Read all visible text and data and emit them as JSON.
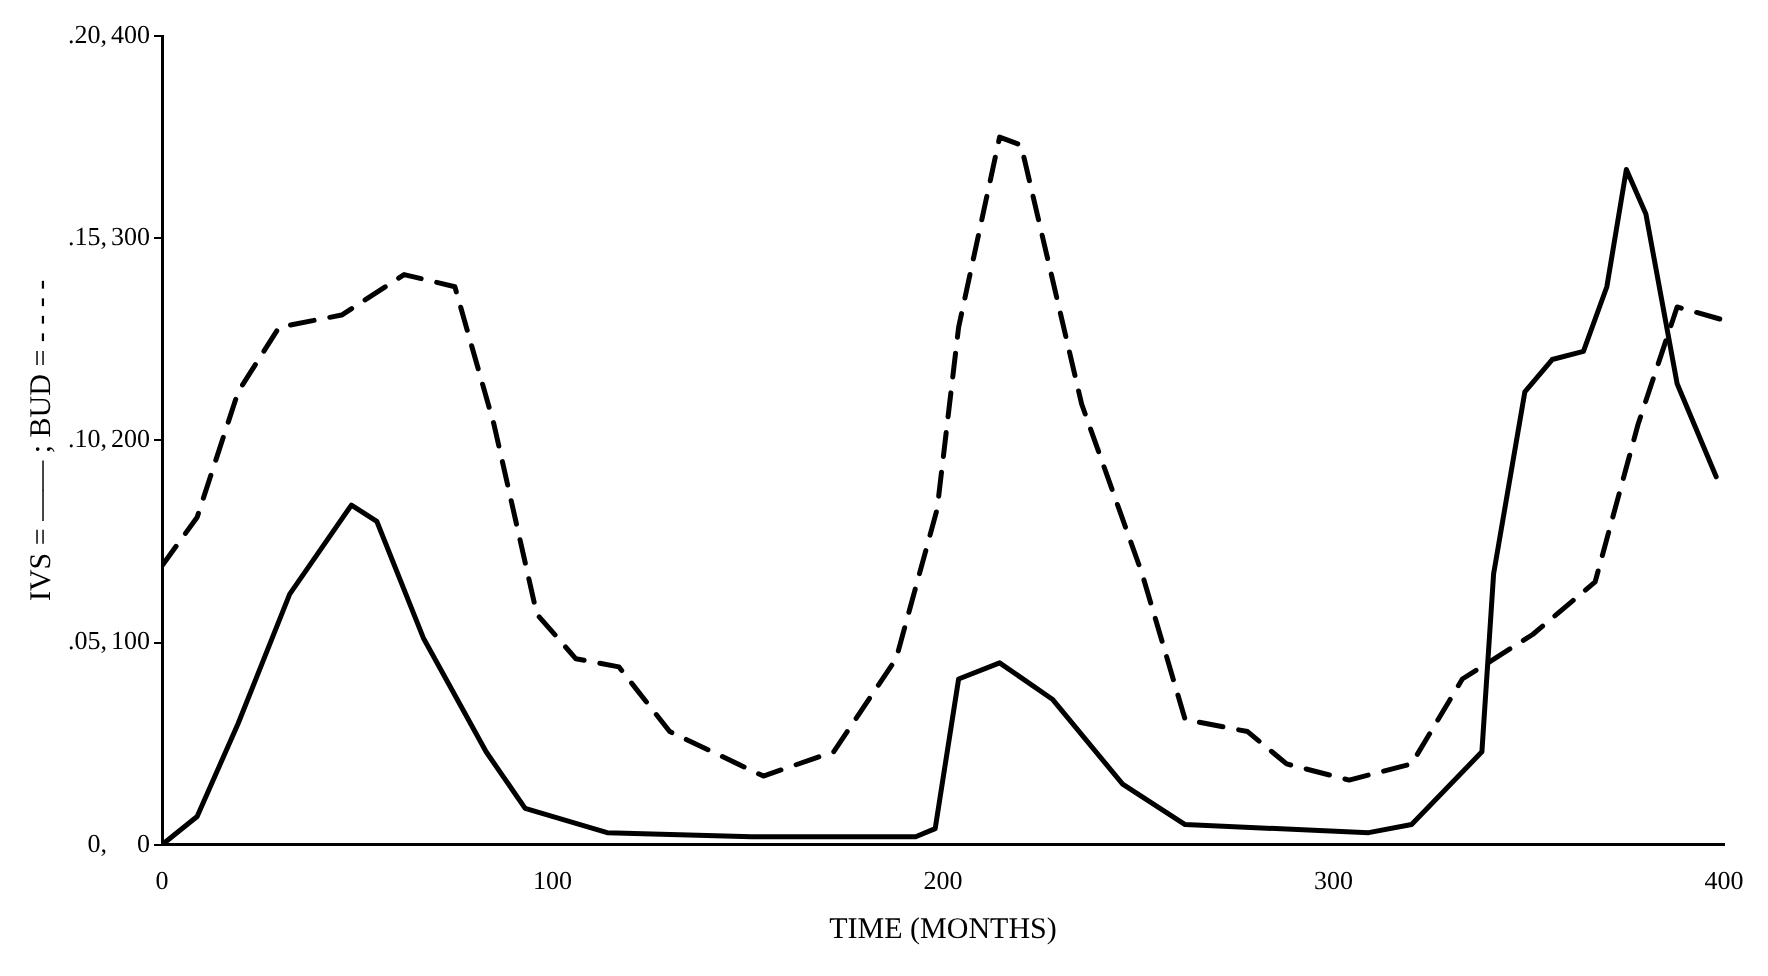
{
  "chart_data": {
    "type": "line",
    "xlabel": "TIME (MONTHS)",
    "ylabel": "IVS = —— ; BUD = - - - -",
    "xlim": [
      0,
      400
    ],
    "xticks": [
      0,
      100,
      200,
      300,
      400
    ],
    "ylim": [
      0,
      0.2
    ],
    "yticks": [
      {
        "value": 0,
        "label": "0,"
      },
      {
        "value": 0.05,
        "label": ".05,"
      },
      {
        "value": 0.1,
        "label": ".10,"
      },
      {
        "value": 0.15,
        "label": ".15,"
      },
      {
        "value": 0.2,
        "label": ".20,"
      }
    ],
    "y2lim": [
      0,
      400
    ],
    "y2ticks": [
      0,
      100,
      200,
      300,
      400
    ],
    "grid": false,
    "legend": false,
    "marker": "none",
    "series": [
      {
        "color": "#000000",
        "line_style": "solid",
        "axis": "y",
        "x": [
          0,
          9,
          19.5,
          32.7,
          48.5,
          55,
          67,
          83,
          93,
          114,
          151,
          193,
          198,
          204,
          214.5,
          228,
          246,
          262,
          309,
          320,
          338,
          341,
          349,
          356,
          364,
          370,
          375,
          380,
          388,
          398
        ],
        "values": [
          0,
          0.007,
          0.03,
          0.062,
          0.084,
          0.08,
          0.051,
          0.023,
          0.009,
          0.003,
          0.002,
          0.002,
          0.004,
          0.041,
          0.045,
          0.036,
          0.015,
          0.005,
          0.003,
          0.005,
          0.023,
          0.067,
          0.112,
          0.12,
          0.122,
          0.138,
          0.167,
          0.156,
          0.114,
          0.091
        ]
      },
      {
        "color": "#000000",
        "line_style": "dashed",
        "axis": "y2",
        "x": [
          0,
          9,
          19.5,
          30,
          46,
          62,
          75,
          85,
          96,
          106,
          117,
          130,
          154,
          172,
          188,
          198.5,
          204,
          214.5,
          220,
          235.5,
          251,
          262,
          278,
          288,
          304,
          320,
          333,
          351,
          367,
          378,
          388,
          399
        ],
        "values": [
          138,
          162,
          224,
          256,
          262,
          282,
          276,
          208,
          114,
          92,
          88,
          56,
          34,
          46,
          92,
          166,
          256,
          350,
          346,
          218,
          134,
          62,
          56,
          40,
          32,
          40,
          82,
          104,
          130,
          208,
          266,
          260
        ]
      }
    ]
  }
}
